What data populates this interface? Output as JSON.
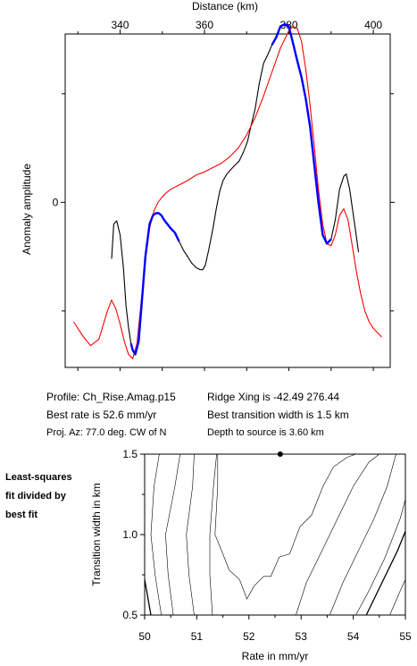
{
  "info": {
    "profile": "Profile: Ch_Rise.Amag.p15",
    "ridge_xing": "Ridge Xing is -42.49 276.44",
    "best_rate": "Best rate is 52.6 mm/yr",
    "best_width": "Best transition width is 1.5 km",
    "proj_az": "Proj. Az: 77.0 deg. CW of N",
    "depth": "Depth to source is   3.60 km"
  },
  "side_note": [
    "Least-squares",
    "fit divided by",
    "best fit"
  ],
  "colors": {
    "observed": "#000000",
    "model": "#ff0000",
    "fit_window": "#0000ff",
    "contour": "#000000"
  },
  "chart_data": [
    {
      "type": "line",
      "title": "",
      "xlabel": "Distance (km)",
      "ylabel": "Anomaly amplitude",
      "xlim": [
        327,
        404
      ],
      "ylim": [
        -1.52,
        1.55
      ],
      "x_ticks": [
        "340",
        "360",
        "380",
        "400"
      ],
      "y_ticks": [
        "0"
      ],
      "grid": false,
      "series": [
        {
          "role": "observed",
          "color": "#000000",
          "x": [
            338,
            338.5,
            339.2,
            340,
            340.8,
            341.4,
            342,
            342.6,
            343,
            343.6,
            344.4,
            345.2,
            346,
            347,
            347.8,
            348.5,
            349.2,
            349.8,
            350.4,
            351.2,
            352,
            353,
            354,
            355,
            356,
            357,
            358,
            359,
            359.6,
            360.2,
            361,
            362,
            362.8,
            363.6,
            364.4,
            365.3,
            366.2,
            367.2,
            368.2,
            369.2,
            370.2,
            371,
            372,
            373,
            374,
            375,
            376,
            377,
            378,
            379,
            380,
            381,
            382,
            383,
            384,
            385,
            386,
            387,
            388,
            389,
            390,
            391,
            392,
            393,
            393.6,
            394.4,
            395.2,
            396,
            396.5
          ],
          "y": [
            -0.52,
            -0.2,
            -0.17,
            -0.3,
            -0.6,
            -0.95,
            -1.15,
            -1.3,
            -1.36,
            -1.4,
            -1.28,
            -0.9,
            -0.5,
            -0.2,
            -0.12,
            -0.1,
            -0.1,
            -0.12,
            -0.16,
            -0.2,
            -0.24,
            -0.28,
            -0.36,
            -0.44,
            -0.5,
            -0.56,
            -0.6,
            -0.62,
            -0.62,
            -0.58,
            -0.44,
            -0.24,
            -0.06,
            0.1,
            0.2,
            0.26,
            0.3,
            0.34,
            0.38,
            0.46,
            0.56,
            0.7,
            0.86,
            1.1,
            1.28,
            1.36,
            1.45,
            1.52,
            1.62,
            1.64,
            1.62,
            1.46,
            1.3,
            1.15,
            0.95,
            0.7,
            0.35,
            0.0,
            -0.3,
            -0.38,
            -0.34,
            -0.16,
            0.12,
            0.24,
            0.26,
            0.12,
            -0.1,
            -0.32,
            -0.46
          ]
        },
        {
          "role": "model",
          "color": "#ff0000",
          "x": [
            329,
            331,
            333,
            335,
            337,
            338,
            339,
            340,
            341,
            342,
            343,
            344,
            345,
            346,
            347,
            348,
            349,
            350,
            351,
            352,
            354,
            356,
            358,
            360,
            362,
            364,
            366,
            368,
            370,
            372,
            374,
            376,
            378,
            380,
            381,
            382,
            383,
            384,
            385,
            386,
            387,
            388,
            389,
            390,
            391,
            392,
            393,
            394,
            395,
            396,
            397,
            398,
            399,
            400,
            401,
            402
          ],
          "y": [
            -1.1,
            -1.22,
            -1.32,
            -1.26,
            -1.0,
            -0.9,
            -0.98,
            -1.12,
            -1.28,
            -1.4,
            -1.44,
            -1.3,
            -0.92,
            -0.52,
            -0.24,
            -0.08,
            0.0,
            0.05,
            0.09,
            0.12,
            0.16,
            0.2,
            0.25,
            0.28,
            0.32,
            0.36,
            0.42,
            0.5,
            0.62,
            0.78,
            0.98,
            1.2,
            1.42,
            1.58,
            1.62,
            1.6,
            1.48,
            1.22,
            0.9,
            0.52,
            0.12,
            -0.2,
            -0.38,
            -0.4,
            -0.3,
            -0.12,
            -0.06,
            -0.16,
            -0.4,
            -0.64,
            -0.84,
            -1.0,
            -1.1,
            -1.16,
            -1.2,
            -1.24
          ]
        },
        {
          "role": "fit_window",
          "color": "#0000ff",
          "x": [
            342.6,
            343,
            343.6,
            344.4,
            345.2,
            346,
            347,
            347.8,
            348.5,
            349.2,
            349.8,
            350.4,
            351.2,
            352,
            353,
            354
          ],
          "y": [
            -1.3,
            -1.36,
            -1.4,
            -1.28,
            -0.9,
            -0.5,
            -0.2,
            -0.12,
            -0.1,
            -0.1,
            -0.12,
            -0.16,
            -0.2,
            -0.24,
            -0.28,
            -0.36
          ]
        },
        {
          "role": "fit_window",
          "color": "#0000ff",
          "x": [
            376,
            377,
            378,
            379,
            380,
            381,
            382,
            383,
            384,
            385,
            386,
            387,
            388,
            389,
            390
          ],
          "y": [
            1.45,
            1.52,
            1.62,
            1.64,
            1.62,
            1.46,
            1.3,
            1.15,
            0.95,
            0.7,
            0.35,
            0.0,
            -0.3,
            -0.38,
            -0.34
          ]
        }
      ]
    },
    {
      "type": "contour",
      "title": "",
      "xlabel": "Rate in mm/yr",
      "ylabel": "Transition width in km",
      "xlim": [
        50,
        55
      ],
      "ylim": [
        0.5,
        1.5
      ],
      "x_ticks": [
        "50",
        "51",
        "52",
        "53",
        "54",
        "55"
      ],
      "y_ticks": [
        "0.5",
        "1.0",
        "1.5"
      ],
      "grid": false,
      "best_fit": {
        "rate": 52.6,
        "width": 1.5
      },
      "contours": [
        {
          "weight": 1.3,
          "x": [
            50,
            50.12
          ],
          "y": [
            0.72,
            0.5
          ]
        },
        {
          "weight": 0.6,
          "x": [
            50.28,
            50.18,
            50.12,
            50.2,
            50.32
          ],
          "y": [
            1.5,
            1.3,
            1.0,
            0.75,
            0.5
          ]
        },
        {
          "weight": 0.6,
          "x": [
            50.68,
            50.58,
            50.4,
            50.45,
            50.55
          ],
          "y": [
            1.5,
            1.3,
            1.0,
            0.75,
            0.5
          ]
        },
        {
          "weight": 0.6,
          "x": [
            50.95,
            50.92,
            50.8,
            50.85,
            50.95
          ],
          "y": [
            1.5,
            1.3,
            1.0,
            0.75,
            0.5
          ]
        },
        {
          "weight": 0.6,
          "x": [
            51.38,
            51.32,
            51.25,
            51.25,
            51.3
          ],
          "y": [
            1.5,
            1.3,
            1.0,
            0.75,
            0.5
          ]
        },
        {
          "weight": 0.6,
          "x": [
            51.4,
            51.4,
            51.35,
            51.5,
            51.62,
            51.82,
            51.96,
            52.1,
            52.28,
            52.42,
            52.58,
            52.78,
            52.98,
            53.2,
            53.42,
            53.62,
            53.88,
            54.05,
            54.18
          ],
          "y": [
            1.5,
            1.3,
            1.0,
            0.88,
            0.78,
            0.72,
            0.6,
            0.68,
            0.74,
            0.74,
            0.86,
            0.88,
            1.05,
            1.12,
            1.3,
            1.42,
            1.48,
            1.5,
            1.5
          ]
        },
        {
          "weight": 0.6,
          "x": [
            52.9,
            53.1,
            53.4,
            53.7,
            54.0,
            54.3,
            54.5
          ],
          "y": [
            0.5,
            0.7,
            0.9,
            1.1,
            1.3,
            1.45,
            1.5
          ]
        },
        {
          "weight": 0.6,
          "x": [
            53.55,
            53.8,
            54.1,
            54.4,
            54.65,
            54.82
          ],
          "y": [
            0.5,
            0.7,
            0.9,
            1.1,
            1.3,
            1.5
          ]
        },
        {
          "weight": 0.6,
          "x": [
            54.05,
            54.3,
            54.6,
            54.9,
            55.0
          ],
          "y": [
            0.5,
            0.65,
            0.85,
            1.1,
            1.22
          ]
        },
        {
          "weight": 1.3,
          "x": [
            54.25,
            54.55,
            54.85,
            55.0
          ],
          "y": [
            0.5,
            0.7,
            0.9,
            1.02
          ]
        },
        {
          "weight": 0.6,
          "x": [
            54.7,
            54.9,
            55.0
          ],
          "y": [
            0.5,
            0.65,
            0.72
          ]
        }
      ]
    }
  ]
}
